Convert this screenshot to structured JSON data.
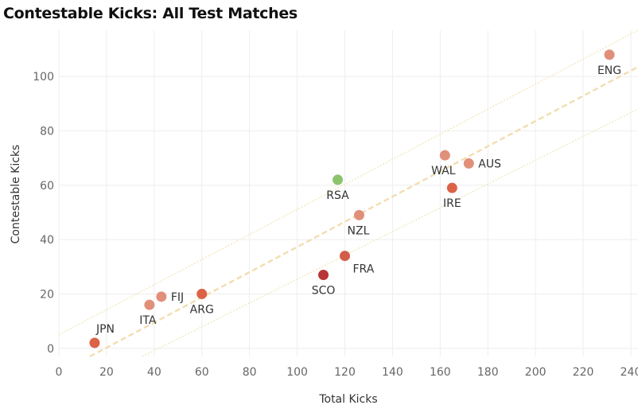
{
  "chart_data": {
    "type": "scatter",
    "title": "Contestable Kicks: All Test Matches",
    "xlabel": "Total Kicks",
    "ylabel": "Contestable Kicks",
    "xlim": [
      0,
      243
    ],
    "ylim": [
      -3,
      117
    ],
    "xticks": [
      0,
      20,
      40,
      60,
      80,
      100,
      120,
      140,
      160,
      180,
      200,
      220,
      240
    ],
    "yticks": [
      0,
      20,
      40,
      60,
      80,
      100
    ],
    "grid": true,
    "points": [
      {
        "name": "ENG",
        "x": 231,
        "y": 108,
        "color": "#e0907a",
        "label_pos": "below"
      },
      {
        "name": "WAL",
        "x": 162,
        "y": 71,
        "color": "#e0907a",
        "label_pos": "below"
      },
      {
        "name": "AUS",
        "x": 172,
        "y": 68,
        "color": "#e0907a",
        "label_pos": "right"
      },
      {
        "name": "IRE",
        "x": 165,
        "y": 59,
        "color": "#dc6347",
        "label_pos": "below"
      },
      {
        "name": "RSA",
        "x": 117,
        "y": 62,
        "color": "#8cc46e",
        "label_pos": "below"
      },
      {
        "name": "NZL",
        "x": 126,
        "y": 49,
        "color": "#e0907a",
        "label_pos": "below"
      },
      {
        "name": "FRA",
        "x": 120,
        "y": 34,
        "color": "#d25e4a",
        "label_pos": "below-right"
      },
      {
        "name": "SCO",
        "x": 111,
        "y": 27,
        "color": "#b83535",
        "label_pos": "below"
      },
      {
        "name": "ARG",
        "x": 60,
        "y": 20,
        "color": "#dc6347",
        "label_pos": "below"
      },
      {
        "name": "FIJ",
        "x": 43,
        "y": 19,
        "color": "#e0907a",
        "label_pos": "right"
      },
      {
        "name": "ITA",
        "x": 38,
        "y": 16,
        "color": "#e0907a",
        "label_pos": "below"
      },
      {
        "name": "JPN",
        "x": 15,
        "y": 2,
        "color": "#dc6347",
        "label_pos": "above"
      }
    ],
    "trend_lines": [
      {
        "name": "trend",
        "style": "dashed",
        "x_start": 13,
        "y_start": -3,
        "x_end": 243,
        "y_end": 103.5
      },
      {
        "name": "upper-band",
        "style": "dotted",
        "x_start": 0,
        "y_start": 5,
        "x_end": 243,
        "y_end": 117
      },
      {
        "name": "lower-band",
        "style": "dotted",
        "x_start": 35,
        "y_start": -3,
        "x_end": 243,
        "y_end": 88
      }
    ],
    "colors": {
      "grid": "#eeeeee",
      "trend": "#f2ddb0",
      "band": "#f1e4b5"
    }
  }
}
